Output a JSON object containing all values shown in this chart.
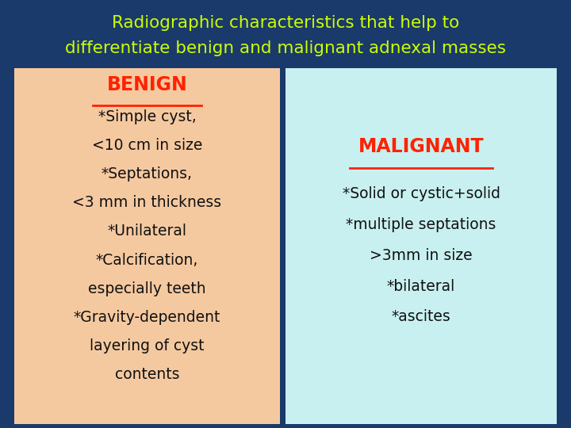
{
  "title_line1": "Radiographic characteristics that help to",
  "title_line2": "differentiate benign and malignant adnexal masses",
  "title_color": "#ccff00",
  "background_color": "#1a3a6b",
  "benign_bg": "#f5c9a0",
  "malignant_bg": "#c8f0f0",
  "benign_header": "BENIGN",
  "malignant_header": "MALIGNANT",
  "header_color": "#ff2200",
  "benign_lines": [
    "*Simple cyst,",
    "<10 cm in size",
    "*Septations,",
    "<3 mm in thickness",
    "*Unilateral",
    "*Calcification,",
    "especially teeth",
    "*Gravity-dependent",
    "layering of cyst",
    "contents"
  ],
  "malignant_lines": [
    "*Solid or cystic+solid",
    "*multiple septations",
    ">3mm in size",
    "*bilateral",
    "*ascites"
  ],
  "body_color": "#111111",
  "title_fontsize": 15.5,
  "header_fontsize": 17,
  "body_fontsize": 13.5
}
